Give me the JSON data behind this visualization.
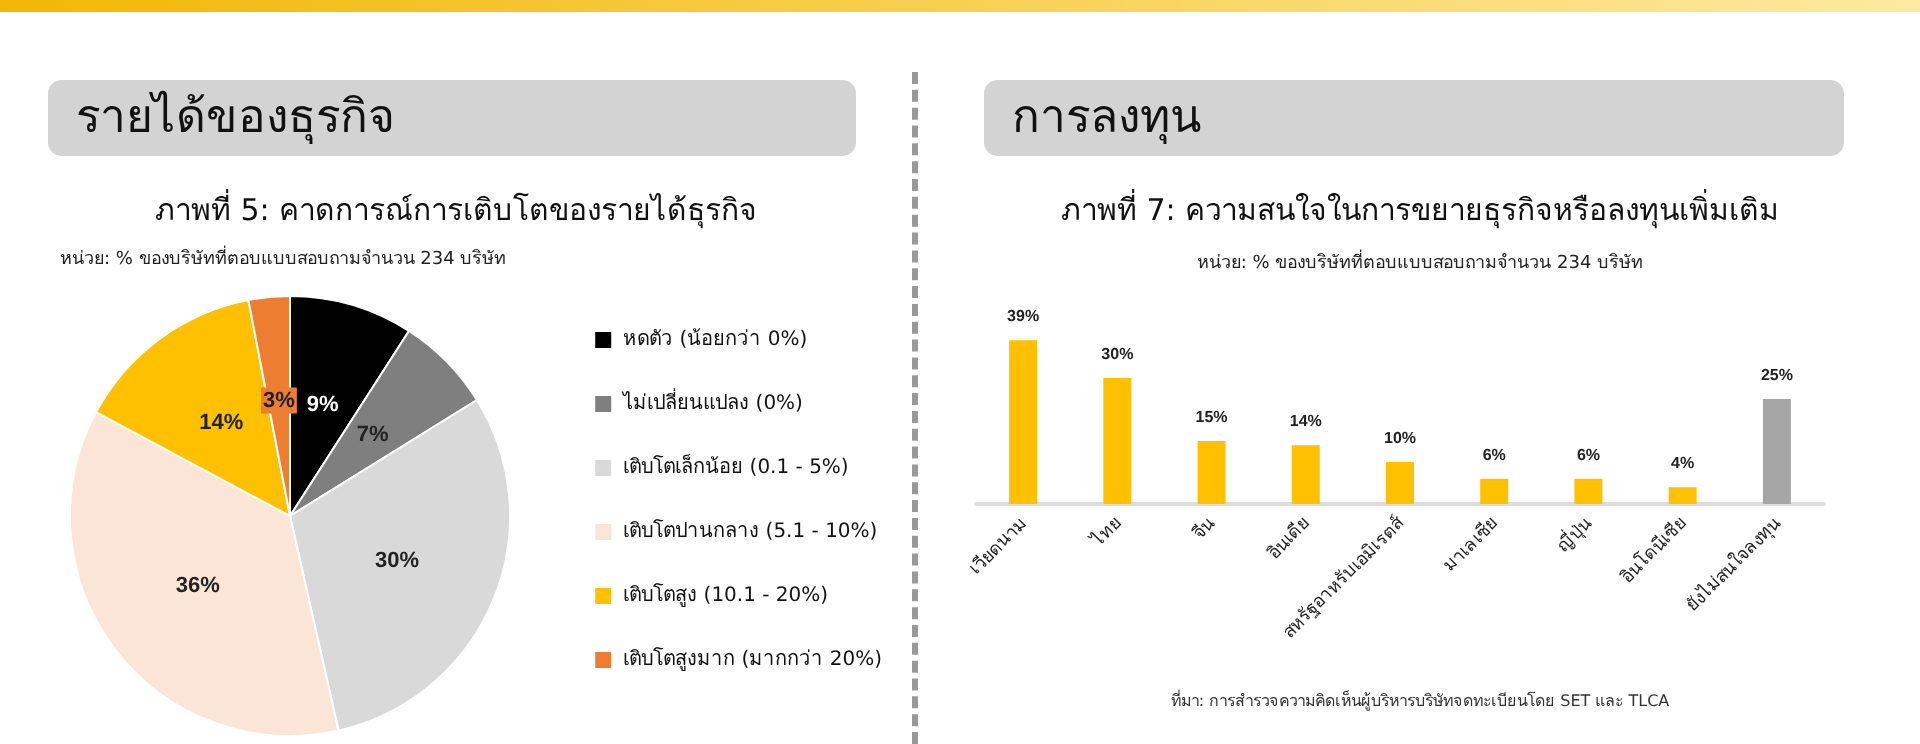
{
  "chart_data": [
    {
      "type": "pie",
      "title": "ภาพที่ 5: คาดการณ์การเติบโตของรายได้ธุรกิจ",
      "subtitle": "หน่วย: % ของบริษัทที่ตอบแบบสอบถามจำนวน 234 บริษัท",
      "annotations": [
        "รายได้ของธุรกิจ"
      ],
      "categories": [
        "หดตัว (น้อยกว่า 0%)",
        "ไม่เปลี่ยนแปลง (0%)",
        "เติบโตเล็กน้อย (0.1 - 5%)",
        "เติบโตปานกลาง (5.1 - 10%)",
        "เติบโตสูง (10.1 - 20%)",
        "เติบโตสูงมาก (มากกว่า 20%)"
      ],
      "values": [
        9,
        7,
        30,
        36,
        14,
        3
      ],
      "value_labels": [
        "9%",
        "7%",
        "30%",
        "36%",
        "14%",
        "3%"
      ],
      "colors": [
        "#000000",
        "#7f7f7f",
        "#d9d9d9",
        "#fbe5d6",
        "#ffc000",
        "#ed7d31"
      ],
      "legend": "right"
    },
    {
      "type": "bar",
      "title": "ภาพที่ 7: ความสนใจในการขยายธุรกิจหรือลงทุนเพิ่มเติม",
      "subtitle": "หน่วย: % ของบริษัทที่ตอบแบบสอบถามจำนวน 234 บริษัท",
      "annotations": [
        "การลงทุน",
        "ที่มา: การสำรวจความคิดเห็นผู้บริหารบริษัทจดทะเบียนโดย SET และ TLCA"
      ],
      "categories": [
        "เวียดนาม",
        "ไทย",
        "จีน",
        "อินเดีย",
        "สหรัฐอาหรับเอมิเรตส์",
        "มาเลเซีย",
        "ญี่ปุ่น",
        "อินโดนีเซีย",
        "ยังไม่สนใจลงทุน"
      ],
      "values": [
        39,
        30,
        15,
        14,
        10,
        6,
        6,
        4,
        25
      ],
      "value_labels": [
        "39%",
        "30%",
        "15%",
        "14%",
        "10%",
        "6%",
        "6%",
        "4%",
        "25%"
      ],
      "colors": [
        "#ffc000",
        "#ffc000",
        "#ffc000",
        "#ffc000",
        "#ffc000",
        "#ffc000",
        "#ffc000",
        "#ffc000",
        "#a6a6a6"
      ],
      "legend": false
    }
  ]
}
